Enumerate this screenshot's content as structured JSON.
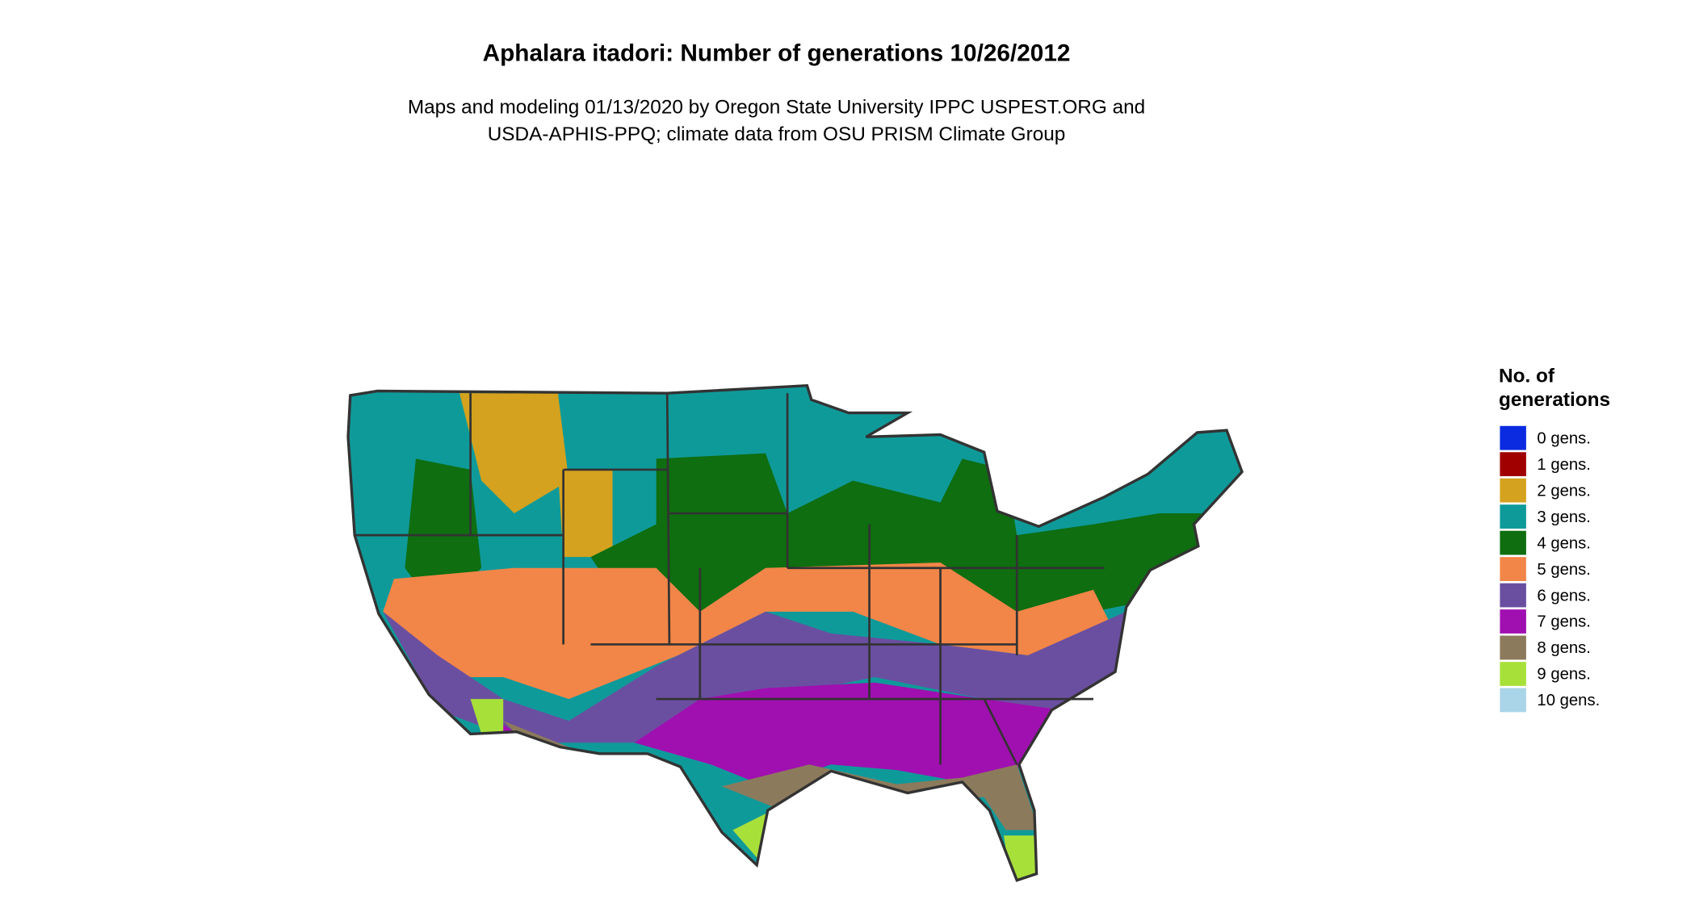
{
  "title": "Aphalara itadori: Number of generations 10/26/2012",
  "subtitle": [
    "Maps and modeling 01/13/2020 by Oregon State University IPPC USPEST.ORG and",
    "USDA-APHIS-PPQ; climate data from OSU PRISM Climate Group"
  ],
  "legend": {
    "title": [
      "No. of",
      "generations"
    ],
    "items": [
      {
        "label": "0 gens.",
        "color": "#0a2be0"
      },
      {
        "label": "1 gens.",
        "color": "#a00000"
      },
      {
        "label": "2 gens.",
        "color": "#d4a21e"
      },
      {
        "label": "3 gens.",
        "color": "#0f9a9a"
      },
      {
        "label": "4 gens.",
        "color": "#0e6e10"
      },
      {
        "label": "5 gens.",
        "color": "#f28548"
      },
      {
        "label": "6 gens.",
        "color": "#6a4fa0"
      },
      {
        "label": "7 gens.",
        "color": "#a010b0"
      },
      {
        "label": "8 gens.",
        "color": "#8c7a5c"
      },
      {
        "label": "9 gens.",
        "color": "#a8e03a"
      },
      {
        "label": "10 gens.",
        "color": "#aad4e8"
      }
    ]
  }
}
